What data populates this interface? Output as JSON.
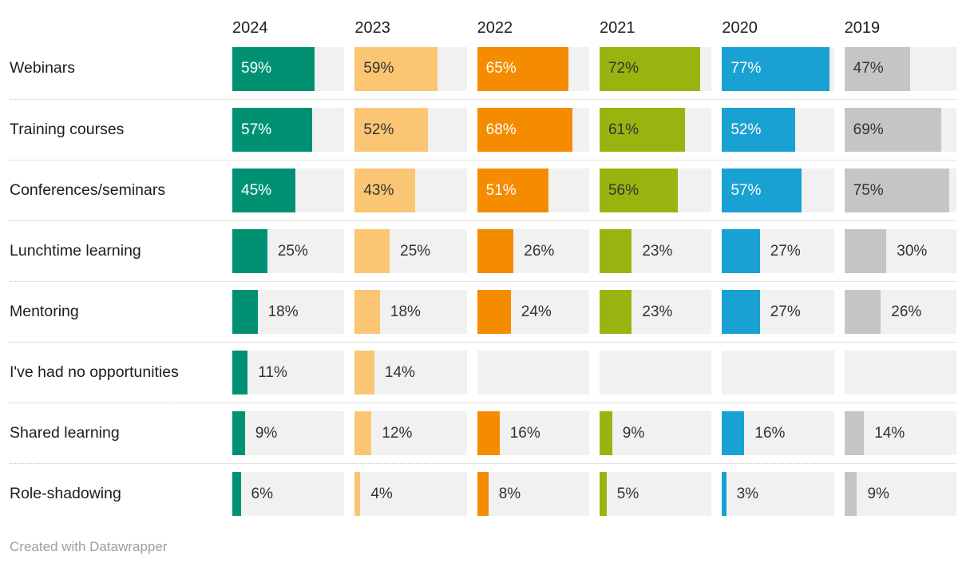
{
  "page": {
    "background": "#ffffff",
    "footer": "Created with Datawrapper"
  },
  "chart_data": {
    "type": "bar",
    "orientation": "horizontal",
    "layout": "small-multiples-grouped-by-year-column",
    "title": "",
    "grid": "off",
    "legend_position": "column-headers",
    "categories": [
      "Webinars",
      "Training courses",
      "Conferences/seminars",
      "Lunchtime learning",
      "Mentoring",
      "I've had no opportunities",
      "Shared learning",
      "Role-shadowing"
    ],
    "series": [
      {
        "name": "2024",
        "color": "#009173",
        "text_color_on_bar": "#ffffff",
        "values": [
          59,
          57,
          45,
          25,
          18,
          11,
          9,
          6
        ]
      },
      {
        "name": "2023",
        "color": "#fac673",
        "text_color_on_bar": "#333333",
        "values": [
          59,
          52,
          43,
          25,
          18,
          14,
          12,
          4
        ]
      },
      {
        "name": "2022",
        "color": "#f58c00",
        "text_color_on_bar": "#ffffff",
        "values": [
          65,
          68,
          51,
          26,
          24,
          null,
          16,
          8
        ]
      },
      {
        "name": "2021",
        "color": "#9ab40f",
        "text_color_on_bar": "#333333",
        "values": [
          72,
          61,
          56,
          23,
          23,
          null,
          9,
          5
        ]
      },
      {
        "name": "2020",
        "color": "#1aa1d3",
        "text_color_on_bar": "#ffffff",
        "values": [
          77,
          52,
          57,
          27,
          27,
          null,
          16,
          3
        ]
      },
      {
        "name": "2019",
        "color": "#c5c5c5",
        "text_color_on_bar": "#333333",
        "values": [
          47,
          69,
          75,
          30,
          26,
          null,
          14,
          9
        ]
      }
    ],
    "value_suffix": "%",
    "cell_axis_max": 80,
    "inside_label_min": 40,
    "track_color": "#f1f1f1",
    "outside_label_color": "#333333"
  }
}
